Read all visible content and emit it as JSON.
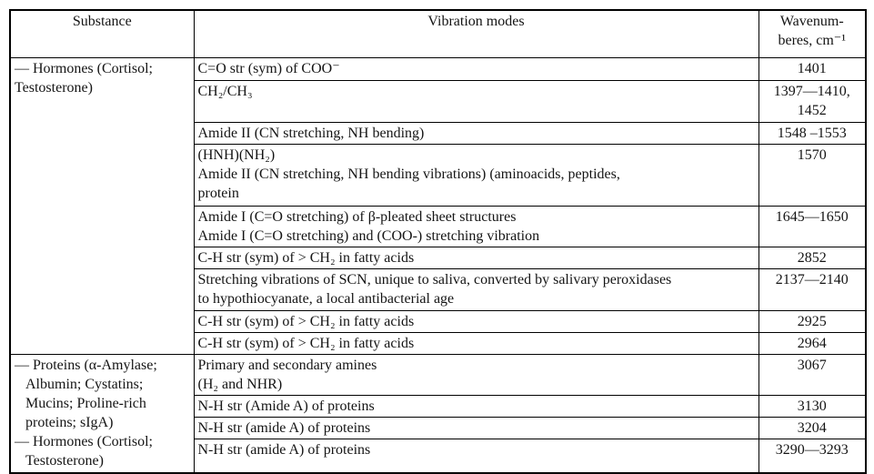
{
  "table": {
    "headers": {
      "substance": "Substance",
      "vibration_modes": "Vibration modes",
      "wavenumbers": "Wavenum-\nberes, cm⁻¹"
    },
    "substance_groups": [
      {
        "text": "— Hormones (Cortisol;\nTestosterone)",
        "row_span": 9
      },
      {
        "text": "— Proteins (α-Amylase;\n   Albumin; Cystatins;\n   Mucins; Proline-rich\n   proteins; sIgA)\n— Hormones (Cortisol;\n   Testosterone)",
        "row_span": 4
      }
    ],
    "rows": [
      {
        "mode": "C=O str (sym) of COO⁻",
        "wavenumber": "1401"
      },
      {
        "mode": "CH₂/CH₃",
        "wavenumber": "1397—1410,\n1452"
      },
      {
        "mode": "Amide II (CN stretching, NH bending)",
        "wavenumber": "1548 –1553"
      },
      {
        "mode": "(HNH)(NH₂)\nAmide II (CN stretching, NH bending vibrations) (aminoacids, peptides,\nprotein",
        "wavenumber": "1570"
      },
      {
        "mode": "Amide I (C=O stretching) of β-pleated sheet structures\nAmide I (C=O stretching) and (COO-) stretching vibration",
        "wavenumber": "1645—1650"
      },
      {
        "mode": "C-H str (sym) of > CH₂ in fatty acids",
        "wavenumber": "2852"
      },
      {
        "mode": "Stretching vibrations of SCN, unique to saliva, converted by salivary peroxidases\nto hypothiocyanate, a local antibacterial age",
        "wavenumber": "2137—2140"
      },
      {
        "mode": "C-H str (sym) of > CH₂ in fatty acids",
        "wavenumber": "2925"
      },
      {
        "mode": "C-H str (sym) of > CH₂ in fatty acids",
        "wavenumber": "2964"
      },
      {
        "mode": "Primary and secondary amines\n(H₂ and NHR)",
        "wavenumber": "3067"
      },
      {
        "mode": "N-H str (Amide A) of proteins",
        "wavenumber": "3130"
      },
      {
        "mode": "N-H str (amide A) of proteins",
        "wavenumber": "3204"
      },
      {
        "mode": "N-H str (amide A) of proteins",
        "wavenumber": "3290—3293"
      }
    ],
    "colors": {
      "border": "#000000",
      "text": "#141414",
      "background": "#ffffff"
    }
  }
}
